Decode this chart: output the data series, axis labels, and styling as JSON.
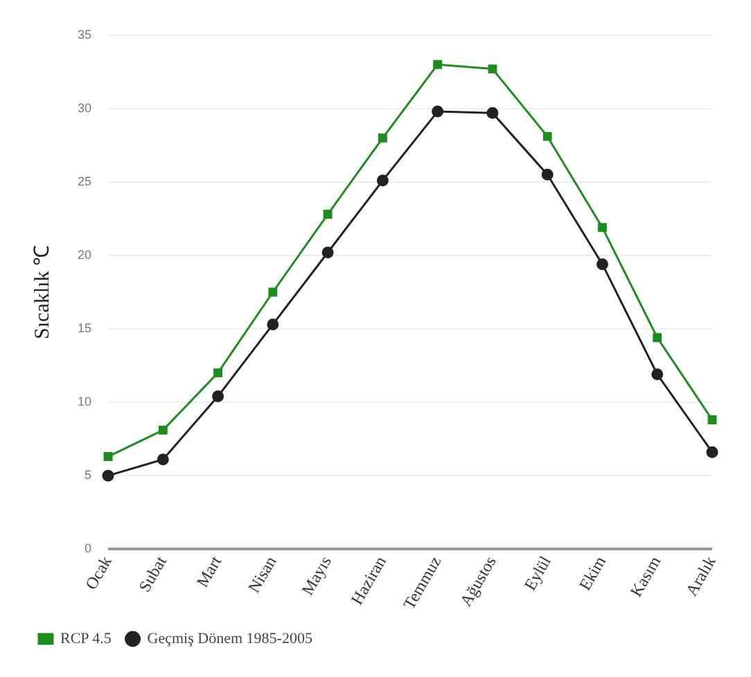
{
  "chart_data": {
    "type": "line",
    "ylabel": "Sıcaklık ℃",
    "categories": [
      "Ocak",
      "Subat",
      "Mart",
      "Nisan",
      "Mayıs",
      "Haziran",
      "Temmuz",
      "Ağustos",
      "Eylül",
      "Ekim",
      "Kasım",
      "Aralık"
    ],
    "series": [
      {
        "name": "RCP 4.5",
        "color": "#1e8c1e",
        "marker": "square",
        "values": [
          6.3,
          8.1,
          12,
          17.5,
          22.8,
          28,
          33,
          32.7,
          28.1,
          21.9,
          14.4,
          8.8
        ]
      },
      {
        "name": "Geçmiş Dönem 1985-2005",
        "color": "#222222",
        "marker": "circle",
        "values": [
          5,
          6.1,
          10.4,
          15.3,
          20.2,
          25.1,
          29.8,
          29.7,
          25.5,
          19.4,
          11.9,
          6.6
        ]
      }
    ],
    "ylim": [
      0,
      35
    ],
    "yticks": [
      0,
      5,
      10,
      15,
      20,
      25,
      30,
      35
    ],
    "grid": "y",
    "legend": "bottom left",
    "line_style": "solid"
  }
}
